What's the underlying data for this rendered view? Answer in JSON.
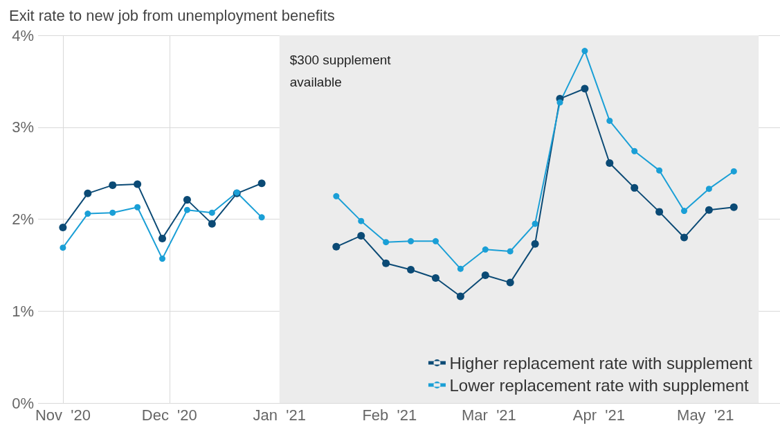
{
  "chart_data": {
    "type": "line",
    "title": "Exit rate to new job from unemployment benefits",
    "x": [
      "2020-11-01",
      "2020-11-08",
      "2020-11-15",
      "2020-11-22",
      "2020-11-29",
      "2020-12-06",
      "2020-12-13",
      "2020-12-20",
      "2020-12-27",
      "2021-01-03",
      "2021-01-10",
      "2021-01-17",
      "2021-01-24",
      "2021-01-31",
      "2021-02-07",
      "2021-02-14",
      "2021-02-21",
      "2021-02-28",
      "2021-03-07",
      "2021-03-14",
      "2021-03-21",
      "2021-03-28",
      "2021-04-04",
      "2021-04-11",
      "2021-04-18",
      "2021-04-25",
      "2021-05-02",
      "2021-05-09"
    ],
    "series": [
      {
        "name": "Higher replacement rate with supplement",
        "color": "#0b4a75",
        "values": [
          1.91,
          2.28,
          2.37,
          2.38,
          1.79,
          2.21,
          1.95,
          2.28,
          2.39,
          null,
          null,
          1.7,
          1.82,
          1.52,
          1.45,
          1.36,
          1.16,
          1.39,
          1.31,
          1.73,
          3.31,
          3.42,
          2.61,
          2.34,
          2.08,
          1.8,
          2.1,
          2.13
        ]
      },
      {
        "name": "Lower replacement rate with supplement",
        "color": "#1a9fd6",
        "values": [
          1.69,
          2.06,
          2.07,
          2.13,
          1.57,
          2.1,
          2.07,
          2.29,
          2.02,
          null,
          null,
          2.25,
          1.98,
          1.75,
          1.76,
          1.76,
          1.46,
          1.67,
          1.65,
          1.95,
          3.27,
          3.83,
          3.07,
          2.74,
          2.53,
          2.09,
          2.33,
          2.52
        ]
      }
    ],
    "xlim": [
      "2020-10-25",
      "2021-05-22"
    ],
    "xticks": [
      {
        "value": "2020-11-01",
        "label": "Nov  '20"
      },
      {
        "value": "2020-12-01",
        "label": "Dec  '20"
      },
      {
        "value": "2021-01-01",
        "label": "Jan  '21"
      },
      {
        "value": "2021-02-01",
        "label": "Feb  '21"
      },
      {
        "value": "2021-03-01",
        "label": "Mar  '21"
      },
      {
        "value": "2021-04-01",
        "label": "Apr  '21"
      },
      {
        "value": "2021-05-01",
        "label": "May  '21"
      }
    ],
    "ylim": [
      0,
      4
    ],
    "yticks": [
      {
        "value": 0,
        "label": "0%"
      },
      {
        "value": 1,
        "label": "1%"
      },
      {
        "value": 2,
        "label": "2%"
      },
      {
        "value": 3,
        "label": "3%"
      },
      {
        "value": 4,
        "label": "4%"
      }
    ],
    "bands": [
      {
        "axis": "x",
        "from": "2021-01-01",
        "to": "2021-05-16",
        "label": "$300 supplement available",
        "color": "#ececec"
      }
    ],
    "grid": true,
    "legend": "bottom right",
    "marker": "circle"
  }
}
